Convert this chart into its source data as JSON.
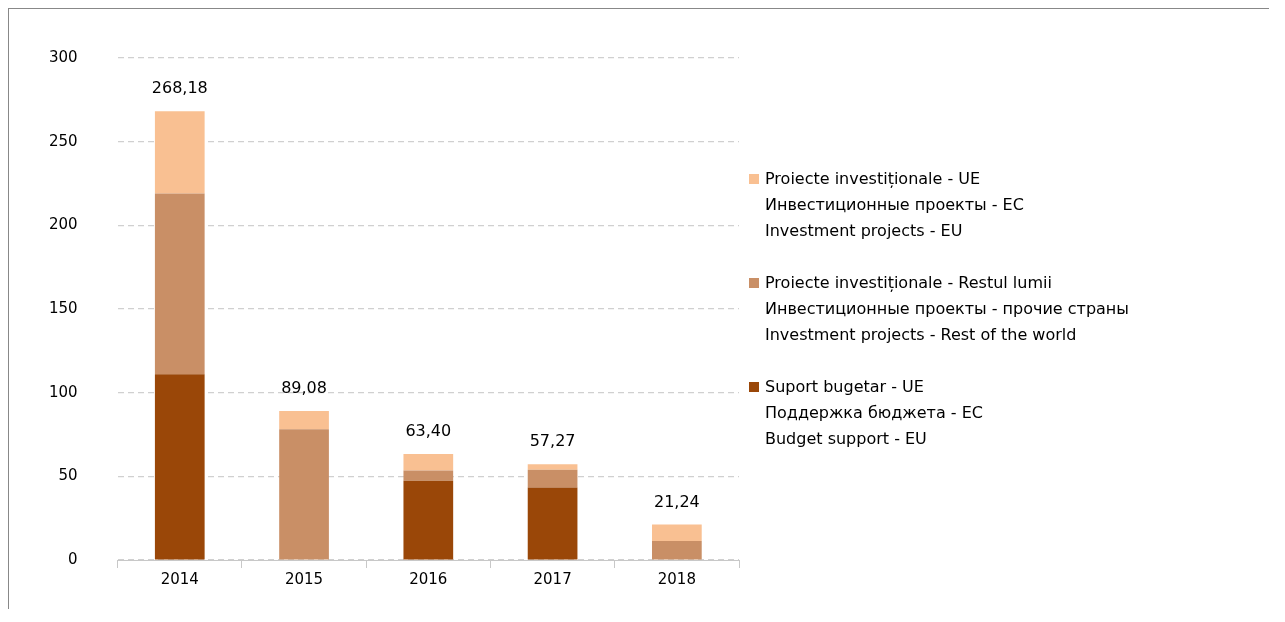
{
  "chart_data": {
    "type": "bar",
    "stacked": true,
    "categories": [
      "2014",
      "2015",
      "2016",
      "2017",
      "2018"
    ],
    "series": [
      {
        "name": "Suport bugetar - UE\nПоддержка бюджета - ЕС\nBudget support - EU",
        "color": "#9a4708",
        "values": [
          111,
          0,
          47.3,
          43.3,
          0
        ]
      },
      {
        "name": "Proiecte investiționale - Restul lumii\nИнвестиционные проекты - прочие страны\nInvestment projects - Rest of the world",
        "color": "#c98f66",
        "values": [
          108,
          78.2,
          6.2,
          10.7,
          11.3
        ]
      },
      {
        "name": "Proiecte investiționale - UE\nИнвестиционные проекты - ЕС\nInvestment projects - EU",
        "color": "#f9c092",
        "values": [
          49.18,
          10.88,
          9.9,
          3.27,
          9.94
        ]
      }
    ],
    "totals": [
      "268,18",
      "89,08",
      "63,40",
      "57,27",
      "21,24"
    ],
    "ylim": [
      0,
      300
    ],
    "yticks": [
      0,
      50,
      100,
      150,
      200,
      250,
      300
    ],
    "grid": "y",
    "legend": "right"
  }
}
